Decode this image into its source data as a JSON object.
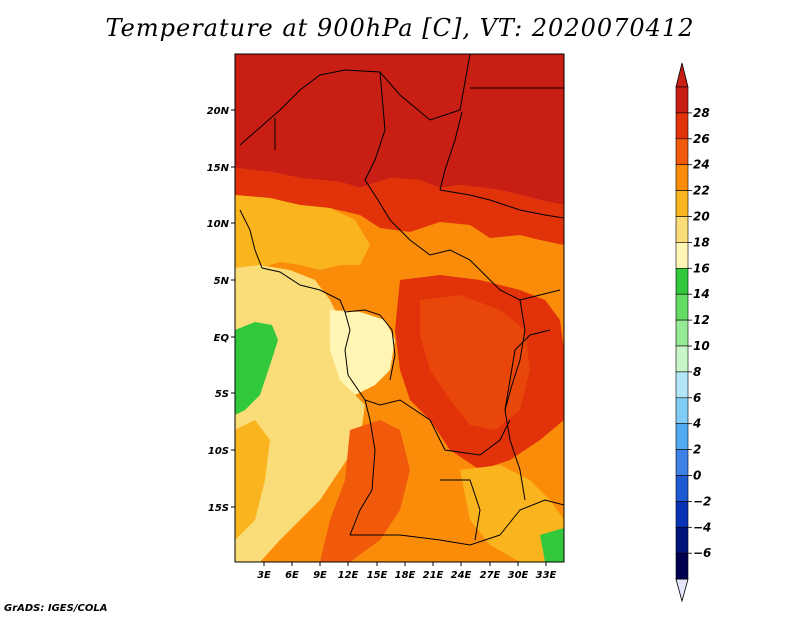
{
  "title": "Temperature at 900hPa [C], VT: 2020070412",
  "footer": "GrADS: IGES/COLA",
  "lat_labels": [
    "20N",
    "15N",
    "10N",
    "5N",
    "EQ",
    "5S",
    "10S",
    "15S"
  ],
  "lon_labels": [
    "3E",
    "6E",
    "9E",
    "12E",
    "15E",
    "18E",
    "21E",
    "24E",
    "27E",
    "30E",
    "33E"
  ],
  "colorbar": {
    "labels": [
      "28",
      "26",
      "24",
      "22",
      "20",
      "18",
      "16",
      "14",
      "12",
      "10",
      "8",
      "6",
      "4",
      "2",
      "0",
      "−2",
      "−4",
      "−6"
    ],
    "colors": [
      "#c81e14",
      "#e1320a",
      "#f05a0a",
      "#fa8c0a",
      "#fab41e",
      "#fadc78",
      "#fff5b4",
      "#32c83c",
      "#64dc64",
      "#96eb96",
      "#c8f5c8",
      "#b4e6fa",
      "#82cdf5",
      "#50aaf0",
      "#3c82e6",
      "#1e5ad2",
      "#0a32b4",
      "#00147d",
      "#000050"
    ],
    "arrow_top_color": "#c81e14",
    "arrow_bottom_color": "#e6e6fa"
  }
}
